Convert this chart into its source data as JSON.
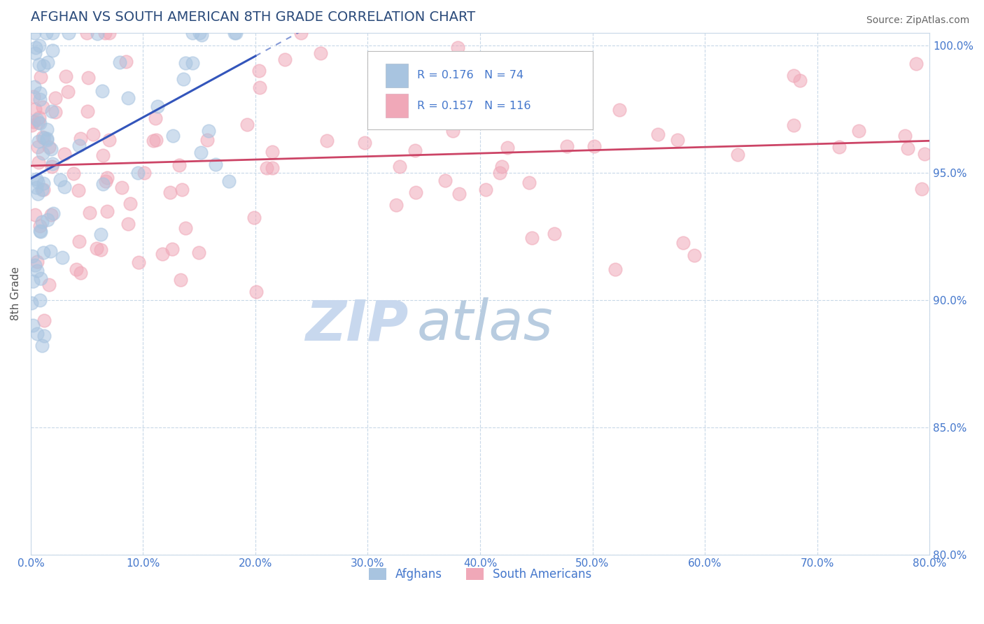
{
  "title": "AFGHAN VS SOUTH AMERICAN 8TH GRADE CORRELATION CHART",
  "source": "Source: ZipAtlas.com",
  "ylabel": "8th Grade",
  "xlim": [
    0.0,
    80.0
  ],
  "ylim": [
    80.0,
    100.5
  ],
  "xticks": [
    0.0,
    10.0,
    20.0,
    30.0,
    40.0,
    50.0,
    60.0,
    70.0,
    80.0
  ],
  "yticks": [
    80.0,
    85.0,
    90.0,
    95.0,
    100.0
  ],
  "xtick_labels": [
    "0.0%",
    "10.0%",
    "20.0%",
    "30.0%",
    "40.0%",
    "50.0%",
    "60.0%",
    "70.0%",
    "80.0%"
  ],
  "ytick_labels": [
    "80.0%",
    "85.0%",
    "90.0%",
    "95.0%",
    "100.0%"
  ],
  "legend_blue_label": "Afghans",
  "legend_pink_label": "South Americans",
  "R_blue": 0.176,
  "N_blue": 74,
  "R_pink": 0.157,
  "N_pink": 116,
  "blue_color": "#a8c4e0",
  "pink_color": "#f0a8b8",
  "blue_line_color": "#3355bb",
  "pink_line_color": "#cc4466",
  "title_color": "#2a4a7a",
  "tick_color": "#4477cc",
  "grid_color": "#c8d8e8",
  "watermark_zip_color": "#c8d8ee",
  "watermark_atlas_color": "#b8cce0"
}
